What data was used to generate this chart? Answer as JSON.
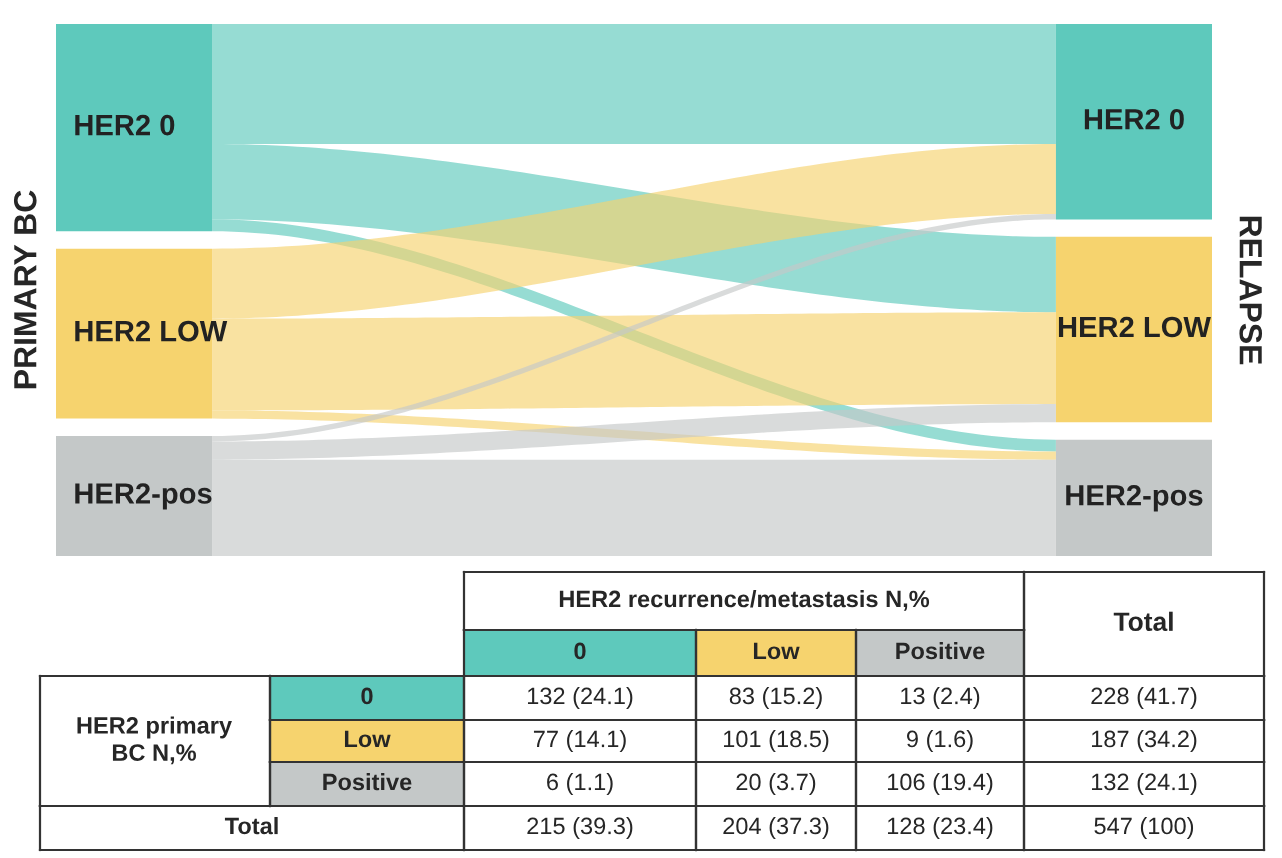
{
  "chart_data": {
    "type": "other",
    "ylabel": "PRIMARY BC",
    "y2label": "RELAPSE",
    "categories": [
      "0",
      "Low",
      "Positive"
    ],
    "y2_categories": [
      "HER2 0",
      "HER2 LOW",
      "HER2-pos"
    ],
    "series": [
      {
        "name": "HER2 0",
        "values": [
          132,
          83,
          13
        ],
        "value_labels": [
          "132 (24.1)",
          "83 (15.2)",
          "13 (2.4)"
        ]
      },
      {
        "name": "HER2 LOW",
        "values": [
          77,
          101,
          9
        ],
        "value_labels": [
          "77 (14.1)",
          "101 (18.5)",
          "9 (1.6)"
        ]
      },
      {
        "name": "HER2-pos",
        "values": [
          6,
          20,
          106
        ],
        "value_labels": [
          "6 (1.1)",
          "20 (3.7)",
          "106 (19.4)"
        ]
      }
    ],
    "colors": [
      "#5ec9bc",
      "#f6d36e",
      "#c4c8c8"
    ],
    "totals": [
      "228 (41.7)",
      "187 (34.2)",
      "132 (24.1)"
    ],
    "annotations": [
      "HER2 recurrence/metastasis N,%",
      "Total",
      "HER2 primary BC N,%",
      "Total",
      "215 (39.3)",
      "204 (37.3)",
      "128 (23.4)",
      "547 (100)"
    ]
  }
}
